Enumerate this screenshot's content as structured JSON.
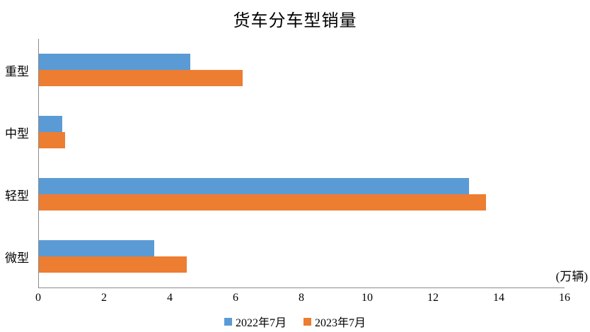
{
  "chart_data": {
    "type": "bar",
    "orientation": "horizontal",
    "title": "货车分车型销量",
    "unit_label": "(万辆)",
    "categories": [
      "重型",
      "中型",
      "轻型",
      "微型"
    ],
    "series": [
      {
        "name": "2022年7月",
        "color": "#5B9BD5",
        "values": [
          4.6,
          0.7,
          13.1,
          3.5
        ]
      },
      {
        "name": "2023年7月",
        "color": "#ED7D31",
        "values": [
          6.2,
          0.8,
          13.6,
          4.5
        ]
      }
    ],
    "x_axis": {
      "min": 0,
      "max": 16,
      "tick_interval": 2,
      "tick_labels": [
        "0",
        "2",
        "4",
        "6",
        "8",
        "10",
        "12",
        "14",
        "16"
      ]
    },
    "legend_position": "bottom",
    "grid": false,
    "colors": {
      "axis_line": "#8c8c8c",
      "text": "#000000",
      "background": "#ffffff"
    }
  }
}
